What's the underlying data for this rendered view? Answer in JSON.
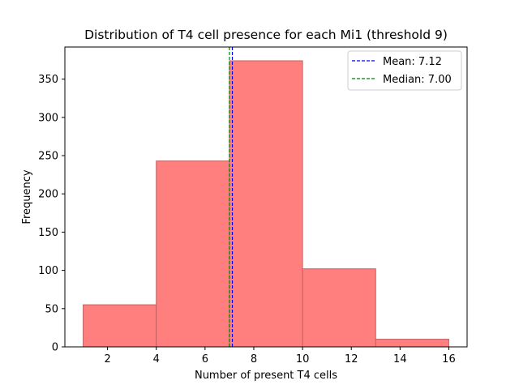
{
  "chart_data": {
    "type": "bar",
    "title": "Distribution of T4 cell presence for each Mi1 (threshold 9)",
    "xlabel": "Number of present T4 cells",
    "ylabel": "Frequency",
    "xlim": [
      0.25,
      16.75
    ],
    "ylim": [
      0,
      392
    ],
    "xticks": [
      2,
      4,
      6,
      8,
      10,
      12,
      14,
      16
    ],
    "yticks": [
      0,
      50,
      100,
      150,
      200,
      250,
      300,
      350
    ],
    "bins": [
      {
        "x0": 1,
        "x1": 4,
        "value": 55
      },
      {
        "x0": 4,
        "x1": 7,
        "value": 243
      },
      {
        "x0": 7,
        "x1": 10,
        "value": 374
      },
      {
        "x0": 10,
        "x1": 13,
        "value": 102
      },
      {
        "x0": 13,
        "x1": 16,
        "value": 10
      }
    ],
    "bar_color": "#ff7f7f",
    "bar_edge_color": "#c46060",
    "vlines": [
      {
        "name": "Mean: 7.12",
        "x": 7.12,
        "color": "#0000ff",
        "style": "dashed"
      },
      {
        "name": "Median: 7.00",
        "x": 7.0,
        "color": "#008000",
        "style": "dashed"
      }
    ],
    "legend_position": "top-right",
    "grid": false
  }
}
